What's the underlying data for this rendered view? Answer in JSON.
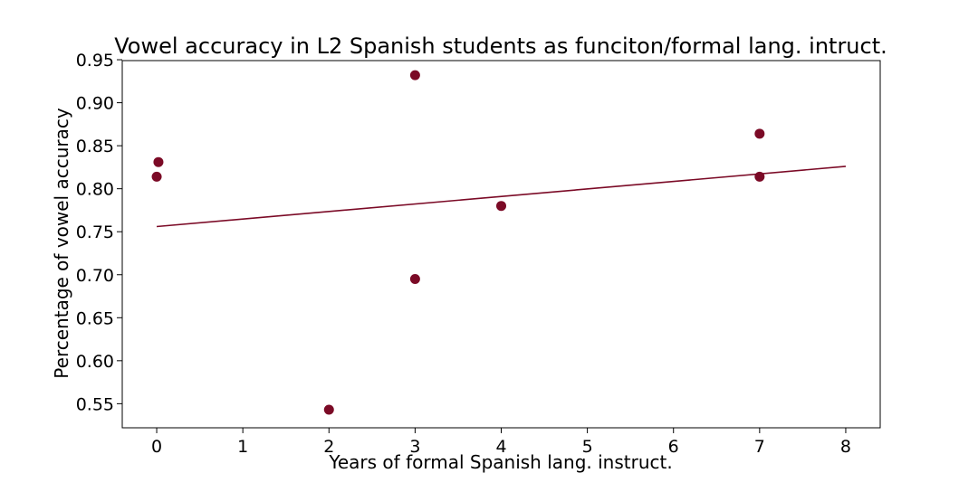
{
  "chart_data": {
    "type": "scatter",
    "title": "Vowel accuracy in L2 Spanish students as funciton/formal lang. intruct.",
    "xlabel": "Years of formal Spanish lang. instruct.",
    "ylabel": "Percentage of vowel accuracy",
    "xlim": [
      -0.4,
      8.4
    ],
    "ylim": [
      0.522,
      0.949
    ],
    "x_ticks": [
      "0",
      "1",
      "2",
      "3",
      "4",
      "5",
      "6",
      "7",
      "8"
    ],
    "y_ticks": [
      "0.55",
      "0.60",
      "0.65",
      "0.70",
      "0.75",
      "0.80",
      "0.85",
      "0.90",
      "0.95"
    ],
    "grid": false,
    "points": [
      {
        "x": 0.02,
        "y": 0.831
      },
      {
        "x": 0.0,
        "y": 0.814
      },
      {
        "x": 2.0,
        "y": 0.543
      },
      {
        "x": 3.0,
        "y": 0.932
      },
      {
        "x": 3.0,
        "y": 0.695
      },
      {
        "x": 4.0,
        "y": 0.78
      },
      {
        "x": 7.0,
        "y": 0.864
      },
      {
        "x": 7.0,
        "y": 0.814
      }
    ],
    "trendline": {
      "x": [
        0,
        8
      ],
      "y": [
        0.756,
        0.826
      ]
    },
    "color": "#7b0a26"
  }
}
